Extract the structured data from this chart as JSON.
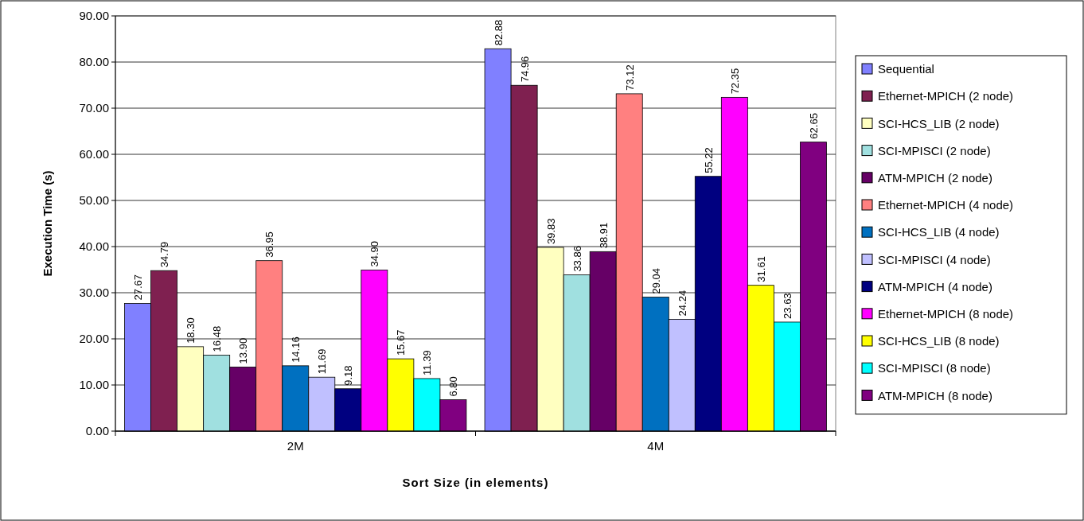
{
  "chart_data": {
    "type": "bar",
    "xlabel": "Sort Size (in elements)",
    "ylabel": "Execution Time (s)",
    "categories": [
      "2M",
      "4M"
    ],
    "series": [
      {
        "name": "Sequential",
        "color": "#8080ff",
        "values": [
          27.67,
          82.88
        ],
        "value_labels": [
          "27.67",
          "82.88"
        ]
      },
      {
        "name": "Ethernet-MPICH (2 node)",
        "color": "#7f2050",
        "values": [
          34.79,
          74.96
        ],
        "value_labels": [
          "34.79",
          "74.96"
        ]
      },
      {
        "name": "SCI-HCS_LIB (2 node)",
        "color": "#ffffc0",
        "values": [
          18.3,
          39.83
        ],
        "value_labels": [
          "18.30",
          "39.83"
        ]
      },
      {
        "name": "SCI-MPISCI (2 node)",
        "color": "#a0e0e0",
        "values": [
          16.48,
          33.86
        ],
        "value_labels": [
          "16.48",
          "33.86"
        ]
      },
      {
        "name": "ATM-MPICH (2 node)",
        "color": "#660066",
        "values": [
          13.9,
          38.91
        ],
        "value_labels": [
          "13.90",
          "38.91"
        ]
      },
      {
        "name": "Ethernet-MPICH (4 node)",
        "color": "#ff8080",
        "values": [
          36.95,
          73.12
        ],
        "value_labels": [
          "36.95",
          "73.12"
        ]
      },
      {
        "name": "SCI-HCS_LIB (4 node)",
        "color": "#0070c0",
        "values": [
          14.16,
          29.04
        ],
        "value_labels": [
          "14.16",
          "29.04"
        ]
      },
      {
        "name": "SCI-MPISCI (4 node)",
        "color": "#c0c0ff",
        "values": [
          11.69,
          24.24
        ],
        "value_labels": [
          "11.69",
          "24.24"
        ]
      },
      {
        "name": "ATM-MPICH (4 node)",
        "color": "#000080",
        "values": [
          9.18,
          55.22
        ],
        "value_labels": [
          "9.18",
          "55.22"
        ]
      },
      {
        "name": "Ethernet-MPICH (8 node)",
        "color": "#ff00ff",
        "values": [
          34.9,
          72.35
        ],
        "value_labels": [
          "34.90",
          "72.35"
        ]
      },
      {
        "name": "SCI-HCS_LIB (8 node)",
        "color": "#ffff00",
        "values": [
          15.67,
          31.61
        ],
        "value_labels": [
          "15.67",
          "31.61"
        ]
      },
      {
        "name": "SCI-MPISCI (8 node)",
        "color": "#00ffff",
        "values": [
          11.39,
          23.63
        ],
        "value_labels": [
          "11.39",
          "23.63"
        ]
      },
      {
        "name": "ATM-MPICH (8 node)",
        "color": "#800080",
        "values": [
          6.8,
          62.65
        ],
        "value_labels": [
          "6.80",
          "62.65"
        ]
      }
    ],
    "ylim": [
      0,
      90
    ],
    "yticks": [
      {
        "value": 0,
        "label": "0.00"
      },
      {
        "value": 10,
        "label": "10.00"
      },
      {
        "value": 20,
        "label": "20.00"
      },
      {
        "value": 30,
        "label": "30.00"
      },
      {
        "value": 40,
        "label": "40.00"
      },
      {
        "value": 50,
        "label": "50.00"
      },
      {
        "value": 60,
        "label": "60.00"
      },
      {
        "value": 70,
        "label": "70.00"
      },
      {
        "value": 80,
        "label": "80.00"
      },
      {
        "value": 90,
        "label": "90.00"
      }
    ],
    "grid": "y",
    "legend": "right"
  }
}
